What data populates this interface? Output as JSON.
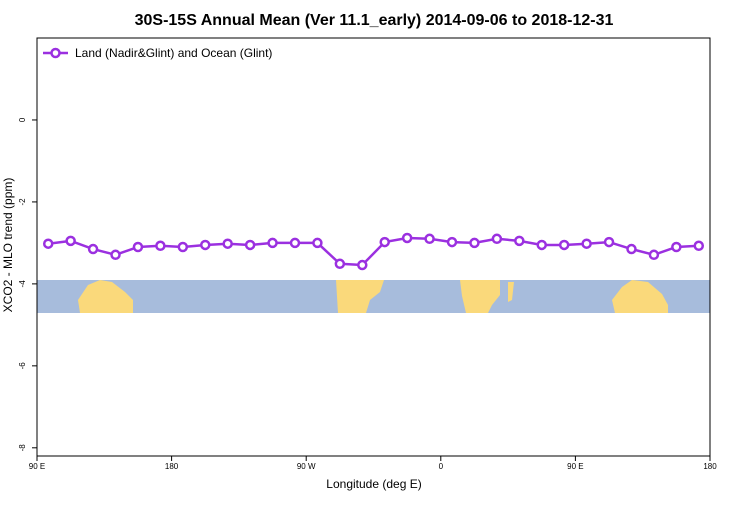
{
  "chart_data": {
    "type": "line",
    "title": "30S-15S Annual Mean (Ver 11.1_early)   2014-09-06 to 2018-12-31",
    "x_label": "Longitude (deg E)",
    "y_label": "XCO2 - MLO trend (ppm)",
    "x": [
      97.5,
      112.5,
      127.5,
      142.5,
      157.5,
      172.5,
      187.5,
      202.5,
      217.5,
      232.5,
      247.5,
      262.5,
      277.5,
      292.5,
      307.5,
      322.5,
      337.5,
      352.5,
      367.5,
      382.5,
      397.5,
      412.5,
      427.5,
      442.5,
      457.5,
      472.5,
      487.5,
      502.5,
      517.5,
      532.5
    ],
    "series": [
      {
        "name": "Land (Nadir&Glint) and Ocean (Glint)",
        "color": "#9b30e0",
        "values": [
          -3.02,
          -2.95,
          -3.15,
          -3.29,
          -3.1,
          -3.07,
          -3.1,
          -3.05,
          -3.02,
          -3.05,
          -3.0,
          -3.0,
          -3.0,
          -3.51,
          -3.54,
          -2.98,
          -2.88,
          -2.9,
          -2.98,
          -3.0,
          -2.9,
          -2.95,
          -3.05,
          -3.05,
          -3.02,
          -2.98,
          -3.15,
          -3.29,
          -3.1,
          -3.07
        ]
      }
    ],
    "xlim": [
      90,
      540
    ],
    "xticks": [
      {
        "value": 90,
        "label": "90 E"
      },
      180,
      {
        "value": 270,
        "label": "90 W"
      },
      {
        "value": 360,
        "label": "0"
      },
      {
        "value": 450,
        "label": "90 E"
      },
      {
        "value": 540,
        "label": "180"
      }
    ],
    "ylim": [
      -8.2,
      2
    ],
    "yticks": [
      0,
      -2,
      -4,
      -6,
      -8
    ],
    "legend": "top-left"
  }
}
